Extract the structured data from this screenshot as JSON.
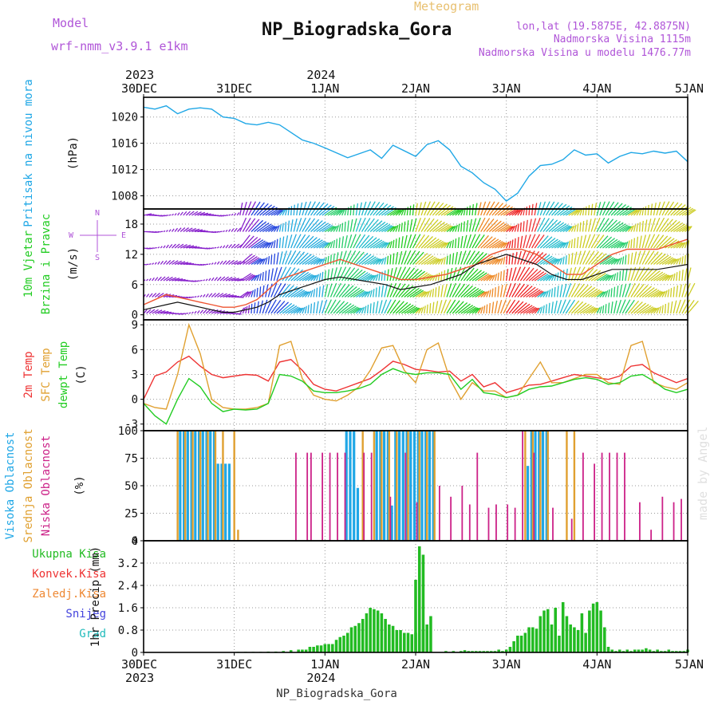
{
  "header": {
    "model_label": "Model",
    "model_value": "wrf-nmm_v3.9.1  e1km",
    "chart_title": "Meteogram",
    "station_title": "NP_Biogradska_Gora",
    "lonlat": "lon,lat (19.5875E, 42.8875N)",
    "elevation": "Nadmorska Visina 1115m",
    "model_elevation": "Nadmorska Visina u modelu 1476.77m",
    "footer_station": "NP_Biogradska_Gora",
    "watermark": "made by Angel"
  },
  "colors": {
    "pressure": "#1fa7e6",
    "temp2m": "#ee3333",
    "sfc": "#e0a030",
    "dew": "#22cc22",
    "high_cloud": "#1fa7e6",
    "mid_cloud": "#e0a030",
    "low_cloud": "#cc2288",
    "precip": "#22bb22",
    "model_purple": "#b055d8",
    "title_orange": "#e8c070"
  },
  "chart_data": [
    {
      "type": "line",
      "id": "pressure",
      "label_lines": [
        "Pritisak na nivou mora"
      ],
      "unit": "(hPa)",
      "ylim": [
        1006,
        1023
      ],
      "yticks": [
        1008,
        1012,
        1016,
        1020
      ],
      "x_hours": [
        0,
        3,
        6,
        9,
        12,
        15,
        18,
        21,
        24,
        27,
        30,
        33,
        36,
        42,
        45,
        48,
        54,
        60,
        63,
        66,
        72,
        75,
        78,
        81,
        84,
        87,
        90,
        93,
        96,
        99,
        102,
        105,
        108,
        111,
        114,
        117,
        120,
        123,
        126,
        129,
        132,
        135,
        138,
        141,
        144
      ],
      "values": [
        1021.5,
        1021.2,
        1021.7,
        1020.5,
        1021.2,
        1021.4,
        1021.2,
        1020.0,
        1019.8,
        1019.0,
        1018.8,
        1019.2,
        1018.8,
        1016.5,
        1016.0,
        1015.3,
        1013.8,
        1015.0,
        1013.7,
        1015.7,
        1014.0,
        1015.8,
        1016.4,
        1015.0,
        1012.5,
        1011.5,
        1010.0,
        1009.0,
        1007.2,
        1008.4,
        1011.0,
        1012.6,
        1012.8,
        1013.5,
        1015.0,
        1014.2,
        1014.4,
        1013.0,
        1014.0,
        1014.6,
        1014.4,
        1014.8,
        1014.5,
        1014.8,
        1013.2
      ]
    },
    {
      "type": "line",
      "id": "wind",
      "label_lines": [
        "10m Vjetar",
        "Brzina i Pravac"
      ],
      "unit": "(m/s)",
      "compass": [
        "N",
        "W",
        "E",
        "S"
      ],
      "ylim": [
        -1,
        21
      ],
      "yticks": [
        0,
        6,
        12,
        18
      ],
      "x_hours": [
        0,
        3,
        6,
        9,
        12,
        15,
        18,
        21,
        24,
        27,
        30,
        33,
        36,
        40,
        44,
        48,
        52,
        56,
        60,
        64,
        68,
        72,
        76,
        80,
        84,
        88,
        92,
        96,
        100,
        104,
        108,
        112,
        116,
        120,
        124,
        128,
        132,
        136,
        140,
        144
      ],
      "series": [
        {
          "name": "speed",
          "values": [
            1,
            1.5,
            2,
            2.5,
            2,
            1.5,
            1,
            0.5,
            0.5,
            1,
            1.5,
            2.5,
            4,
            5,
            6,
            7,
            7.5,
            7,
            6.5,
            6,
            5,
            5.5,
            6,
            7,
            8,
            10,
            11,
            12,
            11,
            10,
            8,
            7,
            7,
            8,
            9,
            9,
            9,
            9,
            9.5,
            10
          ]
        },
        {
          "name": "gust",
          "values": [
            2,
            3,
            4,
            3.5,
            3,
            2.5,
            2,
            1.5,
            1.5,
            2,
            3,
            5,
            7,
            8,
            9,
            10,
            11,
            10,
            9,
            8,
            7,
            7,
            7.5,
            8,
            9,
            10,
            12,
            13,
            13,
            12,
            10,
            8,
            8,
            10,
            12,
            13,
            13,
            13,
            14,
            15
          ]
        }
      ],
      "barb_color_stops": [
        {
          "hour": 0,
          "color": "#8822cc"
        },
        {
          "hour": 24,
          "color": "#8822cc"
        },
        {
          "hour": 28,
          "color": "#2244dd"
        },
        {
          "hour": 36,
          "color": "#22aadd"
        },
        {
          "hour": 48,
          "color": "#22cc66"
        },
        {
          "hour": 56,
          "color": "#22bbcc"
        },
        {
          "hour": 64,
          "color": "#22cc22"
        },
        {
          "hour": 72,
          "color": "#cccc22"
        },
        {
          "hour": 80,
          "color": "#22cc22"
        },
        {
          "hour": 88,
          "color": "#ee8822"
        },
        {
          "hour": 96,
          "color": "#ee2222"
        },
        {
          "hour": 100,
          "color": "#ee3333"
        },
        {
          "hour": 104,
          "color": "#22bbcc"
        },
        {
          "hour": 112,
          "color": "#cccc22"
        },
        {
          "hour": 120,
          "color": "#22cc66"
        },
        {
          "hour": 128,
          "color": "#cccc22"
        },
        {
          "hour": 144,
          "color": "#cccc22"
        }
      ]
    },
    {
      "type": "line",
      "id": "temperature",
      "label_lines": [
        "2m Temp",
        "SFC Temp",
        "dewpt Temp"
      ],
      "unit": "(C)",
      "ylim": [
        -3.8,
        9.6
      ],
      "yticks": [
        -3,
        0,
        3,
        6,
        9
      ],
      "x_hours": [
        0,
        3,
        6,
        9,
        12,
        15,
        18,
        21,
        24,
        27,
        30,
        33,
        36,
        39,
        42,
        45,
        48,
        51,
        54,
        57,
        60,
        63,
        66,
        69,
        72,
        75,
        78,
        81,
        84,
        87,
        90,
        93,
        96,
        99,
        102,
        105,
        108,
        111,
        114,
        117,
        120,
        123,
        126,
        129,
        132,
        135,
        138,
        141,
        144
      ],
      "series": [
        {
          "name": "2m Temp",
          "values": [
            0,
            2.8,
            3.3,
            4.5,
            5.2,
            4.0,
            3.0,
            2.6,
            2.8,
            3.0,
            2.9,
            2.2,
            4.5,
            4.8,
            3.5,
            1.8,
            1.2,
            1.0,
            1.5,
            2.0,
            2.5,
            3.5,
            4.6,
            4.2,
            3.6,
            3.5,
            3.3,
            3.4,
            2.2,
            3.0,
            1.5,
            2.0,
            0.8,
            1.2,
            1.7,
            1.8,
            2.2,
            2.6,
            3.0,
            2.8,
            2.6,
            2.4,
            2.8,
            4.0,
            4.2,
            3.2,
            2.6,
            2.0,
            2.5
          ]
        },
        {
          "name": "SFC Temp",
          "values": [
            -0.5,
            -1.0,
            -1.2,
            3.0,
            9.0,
            5.5,
            0,
            -1.0,
            -1.2,
            -1.2,
            -1.0,
            -0.5,
            6.5,
            7.0,
            2.5,
            0.5,
            0,
            -0.2,
            0.5,
            1.5,
            3.5,
            6.2,
            6.5,
            3.5,
            2.0,
            6.0,
            6.8,
            2.5,
            0,
            2.0,
            1.0,
            1.0,
            0.2,
            0.5,
            2.5,
            4.5,
            2.0,
            2.0,
            2.5,
            3.0,
            3.0,
            2.0,
            1.8,
            6.5,
            7.0,
            2.0,
            1.5,
            1.2,
            2.0
          ]
        },
        {
          "name": "dewpt Temp",
          "values": [
            -0.5,
            -2.0,
            -3.0,
            0,
            2.5,
            1.5,
            -0.5,
            -1.5,
            -1.2,
            -1.3,
            -1.2,
            -0.5,
            3.0,
            2.8,
            2.2,
            1.0,
            0.8,
            0.8,
            1.0,
            1.3,
            1.8,
            3.0,
            3.7,
            3.2,
            3.0,
            3.2,
            3.2,
            3.0,
            1.2,
            2.4,
            0.8,
            0.6,
            0.2,
            0.5,
            1.2,
            1.5,
            1.6,
            2.0,
            2.4,
            2.6,
            2.4,
            1.8,
            2.0,
            2.8,
            3.0,
            2.2,
            1.2,
            0.8,
            1.2
          ]
        }
      ]
    },
    {
      "type": "bar",
      "id": "clouds",
      "label_lines": [
        "Visoka Oblacnost",
        "Srednja Oblacnost",
        "Niska Oblacnost"
      ],
      "unit": "(%)",
      "ylim": [
        0,
        100
      ],
      "yticks": [
        0,
        25,
        50,
        75,
        100
      ],
      "series": [
        {
          "name": "Visoka Oblacnost",
          "hours": [
            10,
            11,
            12,
            13,
            14,
            15,
            16,
            17,
            18,
            19,
            20,
            21,
            22,
            23,
            54,
            55,
            56,
            57,
            62,
            63,
            64,
            65,
            66,
            67,
            68,
            69,
            70,
            71,
            72,
            73,
            74,
            75,
            76,
            77,
            102,
            103,
            104,
            105,
            106,
            107
          ],
          "values": [
            100,
            100,
            100,
            100,
            100,
            100,
            100,
            100,
            100,
            100,
            70,
            70,
            70,
            70,
            100,
            100,
            100,
            48,
            100,
            100,
            100,
            100,
            32,
            100,
            100,
            100,
            100,
            100,
            100,
            100,
            100,
            100,
            100,
            100,
            68,
            100,
            100,
            100,
            100,
            100
          ]
        },
        {
          "name": "Srednja Oblacnost",
          "hours": [
            9,
            11,
            13,
            15,
            17,
            19,
            21,
            24,
            25,
            58,
            61,
            63,
            65,
            67,
            70,
            73,
            75,
            77,
            101,
            103,
            105,
            107,
            112,
            114
          ],
          "values": [
            100,
            100,
            100,
            100,
            100,
            100,
            100,
            100,
            10,
            100,
            100,
            100,
            100,
            100,
            100,
            100,
            100,
            100,
            100,
            100,
            100,
            100,
            100,
            100
          ]
        },
        {
          "name": "Niska Oblacnost",
          "hours": [
            40,
            43,
            44,
            47,
            49,
            51,
            53,
            58,
            60,
            65,
            69,
            72,
            78,
            81,
            84,
            86,
            88,
            91,
            93,
            96,
            98,
            100,
            103,
            108,
            113,
            116,
            119,
            121,
            123,
            125,
            127,
            131,
            134,
            137,
            140,
            142
          ],
          "values": [
            80,
            80,
            80,
            80,
            80,
            80,
            80,
            80,
            80,
            40,
            80,
            35,
            50,
            40,
            50,
            33,
            80,
            30,
            33,
            33,
            30,
            100,
            80,
            30,
            20,
            80,
            70,
            80,
            80,
            80,
            80,
            35,
            10,
            40,
            35,
            38
          ]
        }
      ]
    },
    {
      "type": "bar",
      "id": "precip",
      "label_lines": [
        "Ukupna Kisa",
        "Konvek.Kisa",
        "Zaledj.Kisa",
        "Snijeg",
        "Grad"
      ],
      "legend_colors": [
        "#22bb22",
        "#ee3333",
        "#ee8833",
        "#4444dd",
        "#22bbbb"
      ],
      "unit": "1hr Precip (mm)",
      "ylim": [
        0,
        4
      ],
      "yticks": [
        0,
        0.8,
        1.6,
        2.4,
        3.2,
        4
      ],
      "hours": [
        25,
        27,
        29,
        31,
        33,
        35,
        37,
        39,
        41,
        42,
        43,
        44,
        45,
        46,
        47,
        48,
        49,
        50,
        51,
        52,
        53,
        54,
        55,
        56,
        57,
        58,
        59,
        60,
        61,
        62,
        63,
        64,
        65,
        66,
        67,
        68,
        69,
        70,
        71,
        72,
        73,
        74,
        75,
        76,
        80,
        82,
        84,
        85,
        86,
        87,
        88,
        89,
        90,
        91,
        92,
        93,
        94,
        95,
        96,
        97,
        98,
        99,
        100,
        101,
        102,
        103,
        104,
        105,
        106,
        107,
        108,
        109,
        110,
        111,
        112,
        113,
        114,
        115,
        116,
        117,
        118,
        119,
        120,
        121,
        122,
        123,
        124,
        125,
        126,
        127,
        128,
        129,
        130,
        131,
        132,
        133,
        134,
        135,
        136,
        137,
        138,
        139,
        140,
        141,
        142,
        143,
        144
      ],
      "values": [
        0.02,
        0.02,
        0.02,
        0.02,
        0.03,
        0.03,
        0.05,
        0.08,
        0.1,
        0.1,
        0.1,
        0.2,
        0.2,
        0.25,
        0.25,
        0.3,
        0.3,
        0.3,
        0.45,
        0.55,
        0.6,
        0.7,
        0.9,
        0.95,
        1.05,
        1.2,
        1.4,
        1.6,
        1.55,
        1.5,
        1.4,
        1.2,
        1.0,
        0.95,
        0.8,
        0.8,
        0.7,
        0.7,
        0.65,
        0.7,
        0.65,
        0.8,
        1.0,
        1.3,
        0.05,
        0.05,
        0.05,
        0.08,
        0.05,
        0.05,
        0.05,
        0.05,
        0.05,
        0.05,
        0.05,
        0.05,
        0.1,
        0.05,
        0.1,
        0.2,
        0.4,
        0.6,
        0.6,
        0.7,
        0.9,
        0.9,
        0.85,
        1.3,
        1.5,
        1.55,
        1.0,
        1.6,
        0.6,
        1.8,
        1.3,
        1.0,
        0.9,
        0.8,
        1.4,
        0.7,
        1.5,
        1.75,
        1.8,
        1.5,
        0.9,
        0.2,
        0.1,
        0.05,
        0.1,
        0.05,
        0.1,
        0.05,
        0.1,
        0.1,
        0.1,
        0.15,
        0.1,
        0.05,
        0.1,
        0.05,
        0.05,
        0.1,
        0.05,
        0.05,
        0.05,
        0.05,
        0.1
      ],
      "spike": {
        "hours": [
          72,
          73,
          74
        ],
        "values": [
          2.6,
          3.8,
          3.5
        ]
      }
    }
  ],
  "x_axis": {
    "hours": [
      0,
      24,
      48,
      72,
      96,
      120,
      144
    ],
    "labels": [
      "30DEC",
      "31DEC",
      "1JAN",
      "2JAN",
      "3JAN",
      "4JAN",
      "5JAN"
    ],
    "years": [
      {
        "hour": 0,
        "label": "2023"
      },
      {
        "hour": 48,
        "label": "2024"
      }
    ]
  }
}
